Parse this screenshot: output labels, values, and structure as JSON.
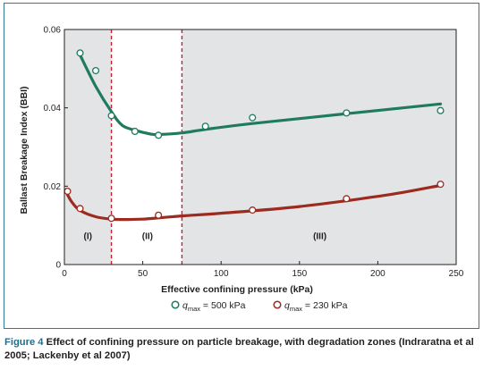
{
  "chart_data": {
    "type": "scatter",
    "xlabel": "Effective confining pressure (kPa)",
    "ylabel": "Ballast Breakage Index (BBI)",
    "xlim": [
      0,
      250
    ],
    "ylim": [
      0,
      0.06
    ],
    "xticks": [
      0,
      50,
      100,
      150,
      200,
      250
    ],
    "yticks": [
      "0",
      "0.02",
      "0.04",
      "0.06"
    ],
    "yticks_values": [
      0,
      0.02,
      0.04,
      0.06
    ],
    "grid": false,
    "legend_position": "bottom",
    "zone_boundaries": [
      30,
      75
    ],
    "zones": [
      {
        "label": "(I)",
        "x": 15,
        "y": 0.0065
      },
      {
        "label": "(II)",
        "x": 53,
        "y": 0.0065
      },
      {
        "label": "(III)",
        "x": 163,
        "y": 0.0065
      }
    ],
    "series": [
      {
        "name_symbol": "q",
        "name_sub": "max",
        "name_rest": " = 500 kPa",
        "color": "#1f7a5e",
        "x": [
          10,
          20,
          30,
          45,
          60,
          90,
          120,
          180,
          240
        ],
        "y": [
          0.054,
          0.0495,
          0.038,
          0.034,
          0.033,
          0.0353,
          0.0375,
          0.0387,
          0.0393
        ],
        "trend_x": [
          10,
          20,
          30,
          37,
          45,
          55,
          60,
          75,
          90,
          120,
          180,
          240
        ],
        "trend_y": [
          0.0535,
          0.0455,
          0.039,
          0.0355,
          0.0343,
          0.0333,
          0.0332,
          0.0336,
          0.0345,
          0.036,
          0.0385,
          0.041
        ]
      },
      {
        "name_symbol": "q",
        "name_sub": "max",
        "name_rest": " = 230 kPa",
        "color": "#9c2a1e",
        "x": [
          2,
          10,
          30,
          60,
          120,
          180,
          240
        ],
        "y": [
          0.0187,
          0.0143,
          0.0118,
          0.0126,
          0.0139,
          0.0168,
          0.0205
        ],
        "trend_x": [
          2,
          5,
          10,
          20,
          30,
          40,
          50,
          60,
          75,
          90,
          120,
          150,
          180,
          210,
          240
        ],
        "trend_y": [
          0.0178,
          0.0158,
          0.0138,
          0.0122,
          0.0116,
          0.0115,
          0.0116,
          0.0119,
          0.0124,
          0.0128,
          0.0137,
          0.0148,
          0.0163,
          0.018,
          0.0202
        ]
      }
    ]
  },
  "caption": {
    "figure_number": "Figure 4",
    "text": "Effect of confining pressure on particle breakage, with degradation zones (Indraratna et al 2005; Lackenby et al 2007)"
  }
}
